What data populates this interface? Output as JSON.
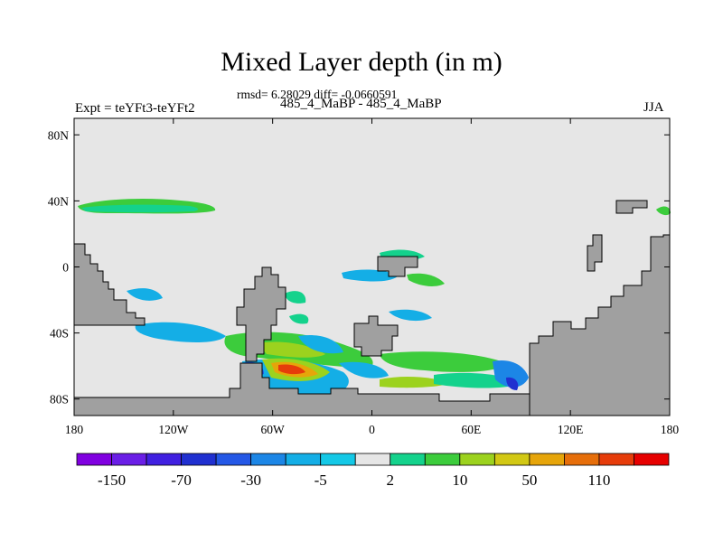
{
  "title": "Mixed Layer depth (in m)",
  "stats_line": "rmsd= 6.28029 diff= -0.0660591",
  "experiment_label": "Expt = teYFt3-teYFt2",
  "runs_label": "485_4_MaBP - 485_4_MaBP",
  "season_label": "JJA",
  "map": {
    "projection": "cylindrical equidistant",
    "lon_range": [
      -180,
      180
    ],
    "lat_range": [
      -90,
      90
    ],
    "lat_ticks": [
      {
        "value": 80,
        "label": "80N"
      },
      {
        "value": 40,
        "label": "40N"
      },
      {
        "value": 0,
        "label": "0"
      },
      {
        "value": -40,
        "label": "40S"
      },
      {
        "value": -80,
        "label": "80S"
      }
    ],
    "lon_ticks": [
      {
        "value": -180,
        "label": "180"
      },
      {
        "value": -120,
        "label": "120W"
      },
      {
        "value": -60,
        "label": "60W"
      },
      {
        "value": 0,
        "label": "0"
      },
      {
        "value": 60,
        "label": "60E"
      },
      {
        "value": 120,
        "label": "120E"
      },
      {
        "value": 180,
        "label": "180"
      }
    ],
    "land_color": "#a0a0a0",
    "ocean_background": "#e6e6e6"
  },
  "colorbar": {
    "colors": [
      "#8000e0",
      "#6a1ee6",
      "#4020e0",
      "#2030d0",
      "#2458e6",
      "#1c86e6",
      "#14aee6",
      "#14c8e6",
      "#e6e6e6",
      "#14d28c",
      "#3ccc3c",
      "#9cd21e",
      "#d2c814",
      "#e6a50a",
      "#e66e0a",
      "#e63c0a",
      "#e60000"
    ],
    "labels": [
      {
        "label": "-150",
        "after_box": 1
      },
      {
        "label": "-70",
        "after_box": 3
      },
      {
        "label": "-30",
        "after_box": 5
      },
      {
        "label": "-5",
        "after_box": 7
      },
      {
        "label": "2",
        "after_box": 9
      },
      {
        "label": "10",
        "after_box": 11
      },
      {
        "label": "50",
        "after_box": 13
      },
      {
        "label": "110",
        "after_box": 15
      }
    ]
  }
}
